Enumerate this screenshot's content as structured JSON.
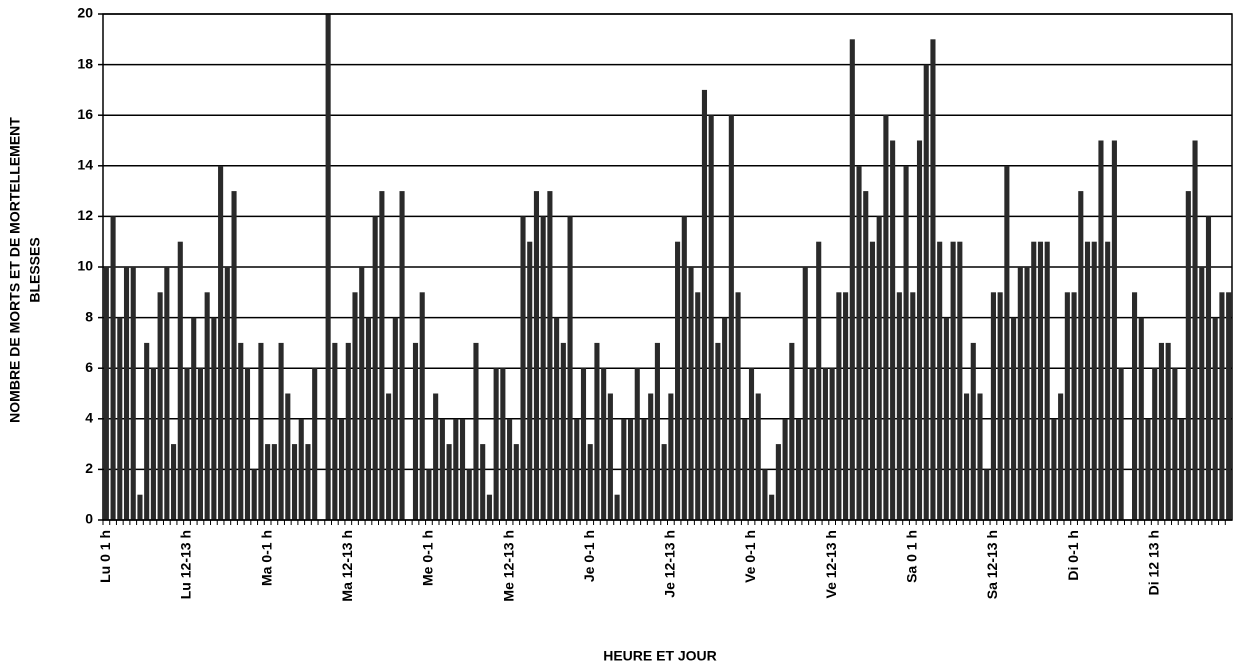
{
  "chart_data": {
    "type": "bar",
    "ylabel": [
      "NOMBRE DE MORTS ET DE MORTELLEMENT",
      "BLESSES"
    ],
    "xlabel": "HEURE ET JOUR",
    "categories": [
      "Lu 0 1 h",
      null,
      null,
      null,
      null,
      null,
      null,
      null,
      null,
      null,
      null,
      null,
      "Lu 12-13 h",
      null,
      null,
      null,
      null,
      null,
      null,
      null,
      null,
      null,
      null,
      null,
      "Ma 0-1 h",
      null,
      null,
      null,
      null,
      null,
      null,
      null,
      null,
      null,
      null,
      null,
      "Ma 12-13 h",
      null,
      null,
      null,
      null,
      null,
      null,
      null,
      null,
      null,
      null,
      null,
      "Me 0-1 h",
      null,
      null,
      null,
      null,
      null,
      null,
      null,
      null,
      null,
      null,
      null,
      "Me 12-13 h",
      null,
      null,
      null,
      null,
      null,
      null,
      null,
      null,
      null,
      null,
      null,
      "Je 0-1 h",
      null,
      null,
      null,
      null,
      null,
      null,
      null,
      null,
      null,
      null,
      null,
      "Je 12-13 h",
      null,
      null,
      null,
      null,
      null,
      null,
      null,
      null,
      null,
      null,
      null,
      "Ve 0-1 h",
      null,
      null,
      null,
      null,
      null,
      null,
      null,
      null,
      null,
      null,
      null,
      "Ve 12-13 h",
      null,
      null,
      null,
      null,
      null,
      null,
      null,
      null,
      null,
      null,
      null,
      "Sa 0 1 h",
      null,
      null,
      null,
      null,
      null,
      null,
      null,
      null,
      null,
      null,
      null,
      "Sa 12-13 h",
      null,
      null,
      null,
      null,
      null,
      null,
      null,
      null,
      null,
      null,
      null,
      "Di 0-1 h",
      null,
      null,
      null,
      null,
      null,
      null,
      null,
      null,
      null,
      null,
      null,
      "Di 12 13 h",
      null,
      null,
      null,
      null,
      null,
      null,
      null,
      null,
      null,
      null,
      null
    ],
    "values": [
      10,
      12,
      8,
      10,
      10,
      1,
      7,
      6,
      9,
      10,
      3,
      11,
      6,
      8,
      6,
      9,
      8,
      14,
      10,
      13,
      7,
      6,
      2,
      7,
      3,
      3,
      7,
      5,
      3,
      4,
      3,
      6,
      0,
      20,
      7,
      4,
      7,
      9,
      10,
      8,
      12,
      13,
      5,
      8,
      13,
      0,
      7,
      9,
      2,
      5,
      4,
      3,
      4,
      4,
      2,
      7,
      3,
      1,
      6,
      6,
      4,
      3,
      12,
      11,
      13,
      12,
      13,
      8,
      7,
      12,
      4,
      6,
      3,
      7,
      6,
      5,
      1,
      4,
      4,
      6,
      4,
      5,
      7,
      3,
      5,
      11,
      12,
      10,
      9,
      17,
      16,
      7,
      8,
      16,
      9,
      4,
      6,
      5,
      2,
      1,
      3,
      4,
      7,
      4,
      10,
      6,
      11,
      6,
      6,
      9,
      9,
      19,
      14,
      13,
      11,
      12,
      16,
      15,
      9,
      14,
      9,
      15,
      18,
      19,
      11,
      8,
      11,
      11,
      5,
      7,
      5,
      2,
      9,
      9,
      14,
      8,
      10,
      10,
      11,
      11,
      11,
      4,
      5,
      9,
      9,
      13,
      11,
      11,
      15,
      11,
      15,
      6,
      0,
      9,
      8,
      4,
      6,
      7,
      7,
      6,
      4,
      13,
      15,
      10,
      12,
      8,
      9,
      9
    ],
    "color": "#2a2a2a",
    "ylim": [
      0,
      20
    ],
    "yticks": [
      0,
      2,
      4,
      6,
      8,
      10,
      12,
      14,
      16,
      18,
      20
    ],
    "grid": true
  }
}
